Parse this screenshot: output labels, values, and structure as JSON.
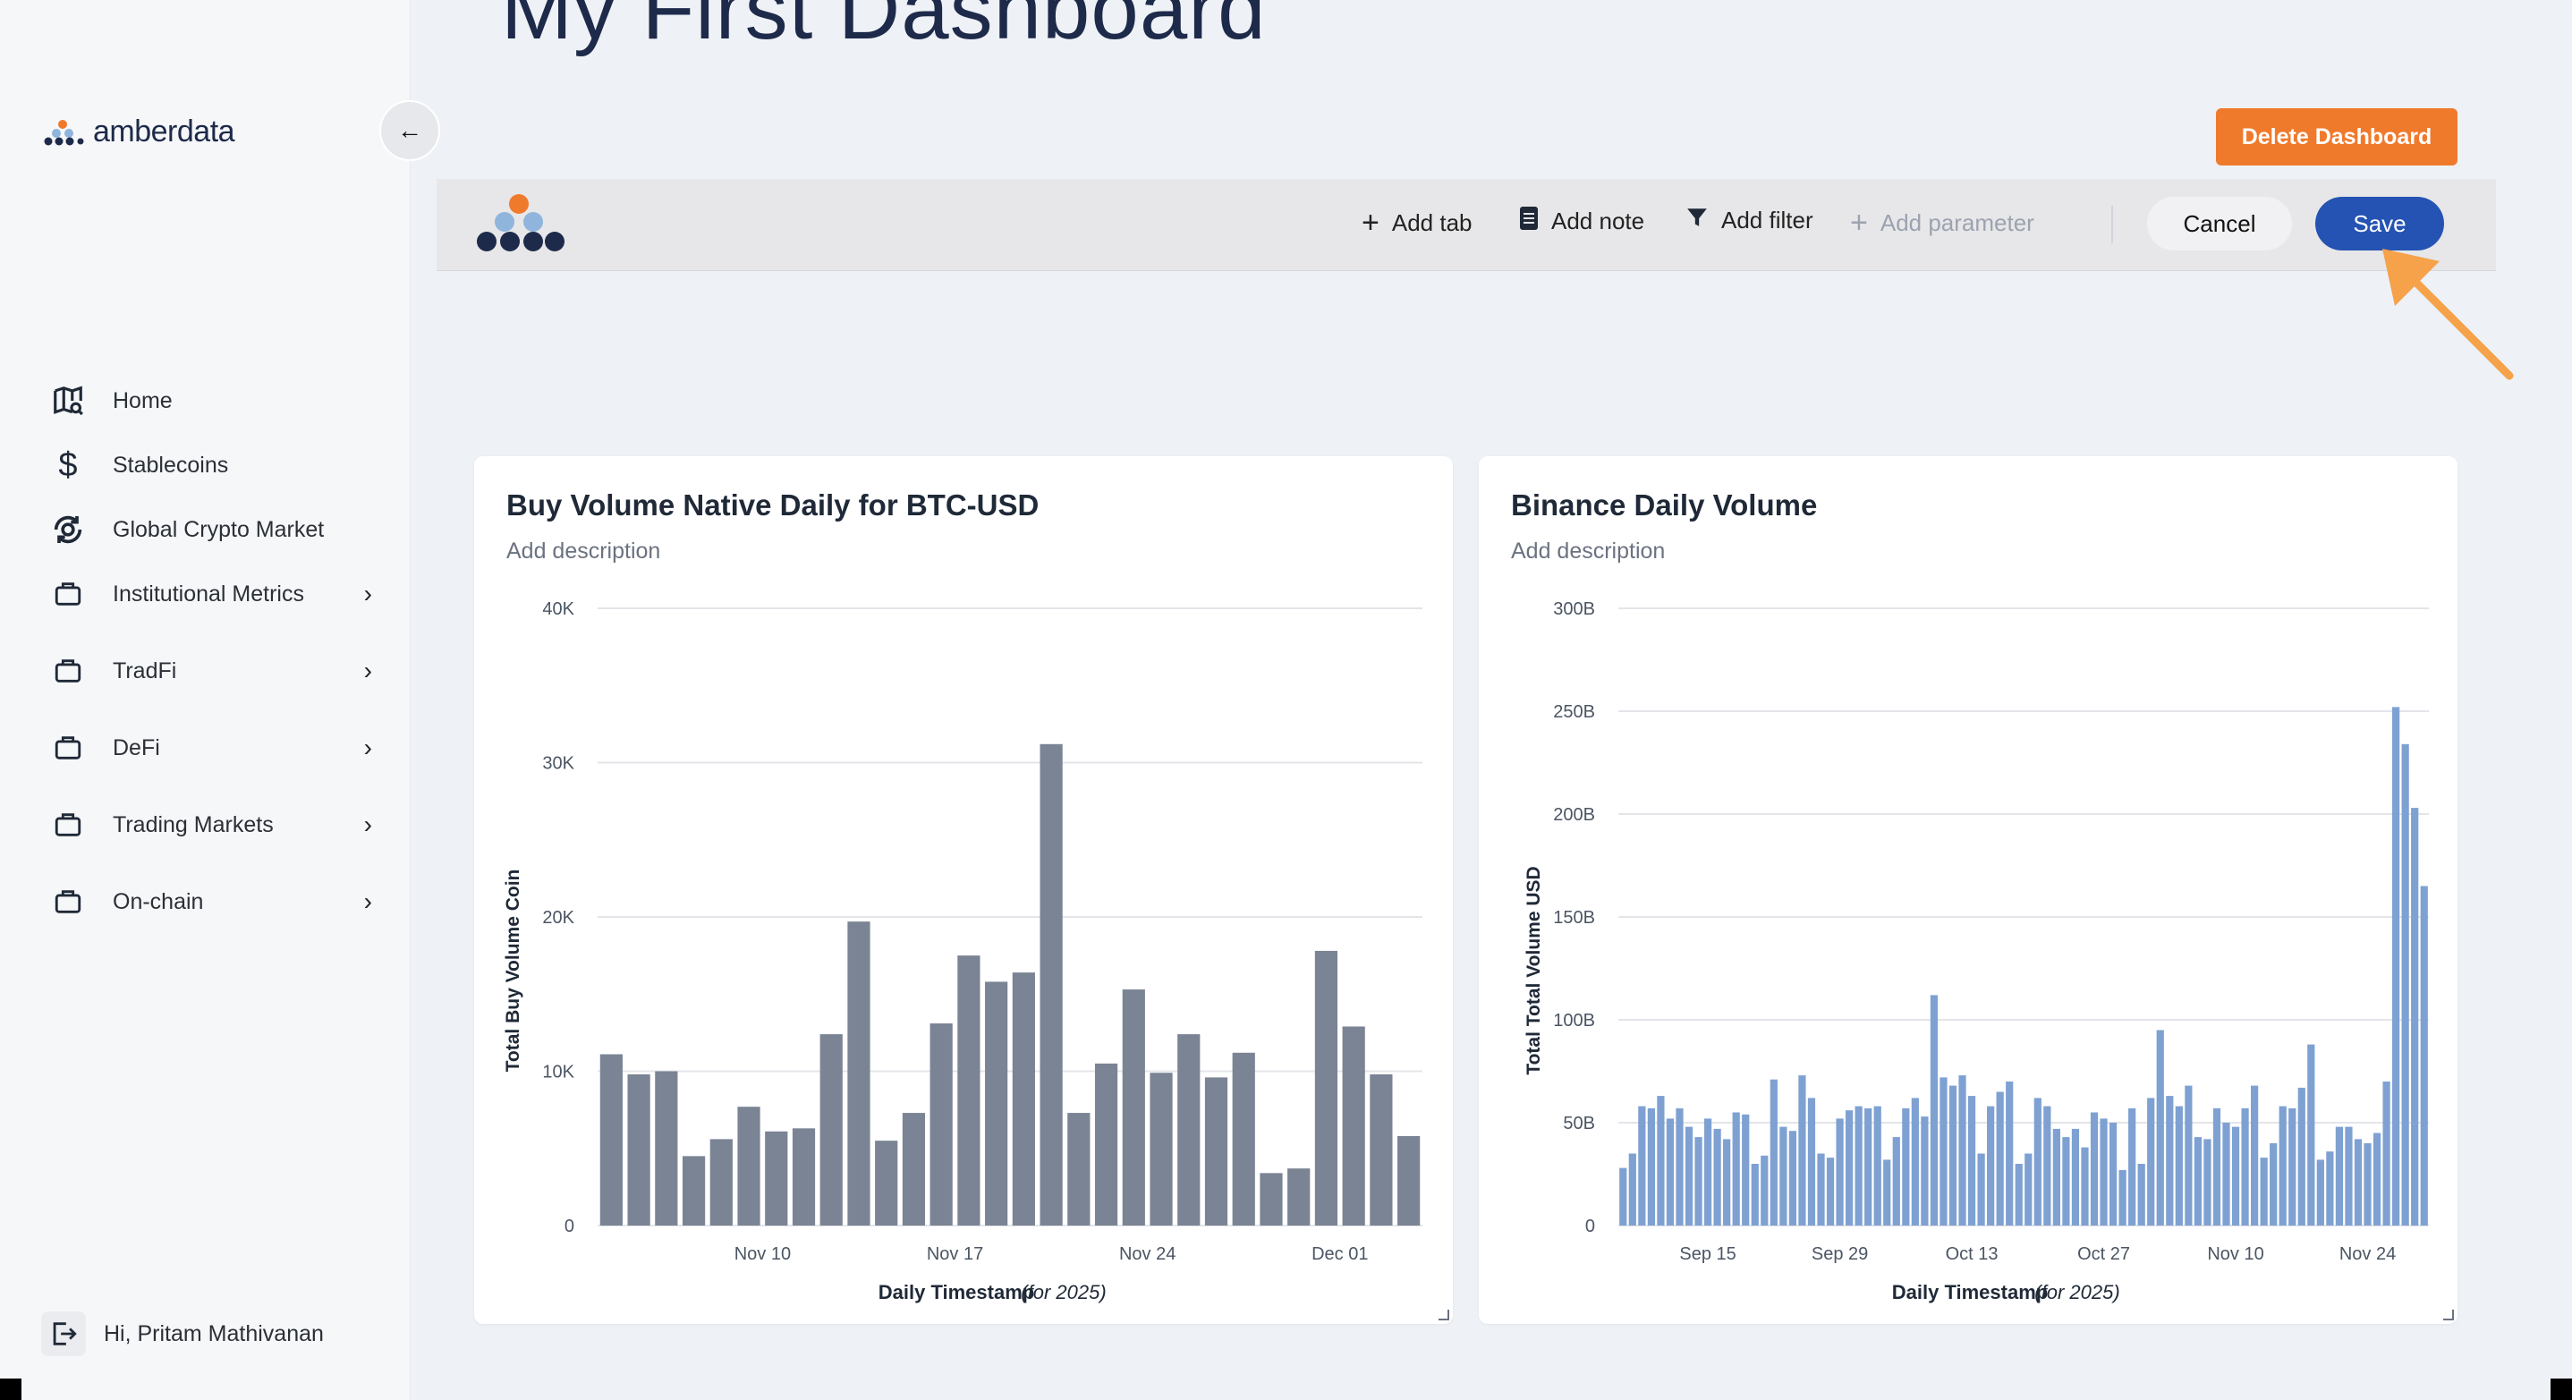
{
  "app": {
    "logo_text": "amberdata",
    "page_title": "My First Dashboard",
    "delete_label": "Delete Dashboard",
    "accent_orange": "#f07a2c",
    "accent_blue": "#2453b3"
  },
  "sidebar": {
    "items": [
      {
        "label": "Home",
        "icon": "map-search-icon",
        "has_chevron": false
      },
      {
        "label": "Stablecoins",
        "icon": "dollar-icon",
        "has_chevron": false
      },
      {
        "label": "Global Crypto Market",
        "icon": "globe-cycle-icon",
        "has_chevron": false
      },
      {
        "label": "Institutional Metrics",
        "icon": "briefcase-icon",
        "has_chevron": true
      },
      {
        "label": "TradFi",
        "icon": "briefcase-icon",
        "has_chevron": true
      },
      {
        "label": "DeFi",
        "icon": "briefcase-icon",
        "has_chevron": true
      },
      {
        "label": "Trading Markets",
        "icon": "briefcase-icon",
        "has_chevron": true
      },
      {
        "label": "On-chain",
        "icon": "briefcase-icon",
        "has_chevron": true
      }
    ],
    "user_greeting": "Hi, Pritam Mathivanan"
  },
  "toolbar": {
    "add_tab": "Add tab",
    "add_note": "Add note",
    "add_filter": "Add filter",
    "add_parameter": "Add parameter",
    "cancel": "Cancel",
    "save": "Save"
  },
  "cards": [
    {
      "title": "Buy Volume Native Daily for BTC-USD",
      "description": "Add description"
    },
    {
      "title": "Binance Daily Volume",
      "description": "Add description"
    }
  ],
  "chart_data": [
    {
      "type": "bar",
      "title": "Buy Volume Native Daily for BTC-USD",
      "ylabel": "Total Buy Volume Coin",
      "xlabel": "Daily Timestamp",
      "xlabel_note": "(for 2025)",
      "ylim": [
        0,
        40000
      ],
      "yticks": [
        0,
        10000,
        20000,
        30000,
        40000
      ],
      "ytick_labels": [
        "0",
        "10K",
        "20K",
        "30K",
        "40K"
      ],
      "xtick_labels": [
        "Nov 10",
        "Nov 17",
        "Nov 24",
        "Dec 01"
      ],
      "xtick_index": [
        5.5,
        12.5,
        19.5,
        26.5
      ],
      "bar_color": "#7b8494",
      "grid": true,
      "values": [
        11100,
        9800,
        10000,
        4500,
        5600,
        7700,
        6100,
        6300,
        12400,
        19700,
        5500,
        7300,
        13100,
        17500,
        15800,
        16400,
        31200,
        7300,
        10500,
        15300,
        9900,
        12400,
        9600,
        11200,
        3400,
        3700,
        17800,
        12900,
        9800,
        5800
      ]
    },
    {
      "type": "bar",
      "title": "Binance Daily Volume",
      "ylabel": "Total Total Volume USD",
      "xlabel": "Daily Timestamp",
      "xlabel_note": "(for 2025)",
      "ylim": [
        0,
        300
      ],
      "yunit": "B",
      "yticks": [
        0,
        50,
        100,
        150,
        200,
        250,
        300
      ],
      "ytick_labels": [
        "0",
        "50B",
        "100B",
        "150B",
        "200B",
        "250B",
        "300B"
      ],
      "xtick_labels": [
        "Sep 15",
        "Sep 29",
        "Oct 13",
        "Oct 27",
        "Nov 10",
        "Nov 24"
      ],
      "xtick_index": [
        9,
        23,
        37,
        51,
        65,
        79
      ],
      "bar_color": "#7ea1d2",
      "grid": true,
      "values": [
        28,
        35,
        58,
        57,
        63,
        52,
        57,
        48,
        43,
        52,
        47,
        42,
        55,
        54,
        30,
        34,
        71,
        48,
        46,
        73,
        62,
        35,
        33,
        52,
        56,
        58,
        57,
        58,
        32,
        43,
        57,
        62,
        53,
        112,
        72,
        68,
        73,
        63,
        35,
        58,
        65,
        70,
        30,
        35,
        62,
        58,
        47,
        43,
        47,
        38,
        55,
        52,
        50,
        27,
        57,
        30,
        62,
        95,
        63,
        58,
        68,
        43,
        42,
        57,
        50,
        48,
        57,
        68,
        33,
        40,
        58,
        57,
        67,
        88,
        32,
        36,
        48,
        48,
        42,
        40,
        45,
        70,
        252,
        234,
        203,
        165
      ]
    }
  ]
}
